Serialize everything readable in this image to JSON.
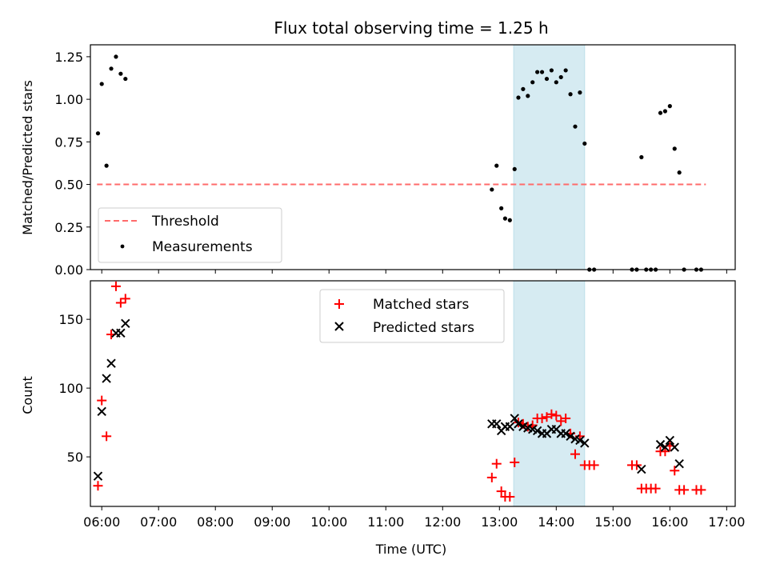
{
  "chart_data": [
    {
      "type": "scatter",
      "title": "Flux total observing time = 1.25 h",
      "xlabel": "",
      "ylabel": "Matched/Predicted stars",
      "xlim": [
        "05:48",
        "17:09"
      ],
      "ylim": [
        0,
        1.32
      ],
      "yticks": [
        "0.00",
        "0.25",
        "0.50",
        "0.75",
        "1.00",
        "1.25"
      ],
      "shaded_region": {
        "start": "13:15",
        "end": "14:30",
        "color": "#add8e6"
      },
      "threshold": {
        "name": "Threshold",
        "value": 0.5,
        "x_start": "05:55",
        "x_end": "16:38",
        "color": "#ff6b6b"
      },
      "legend_position": "lower-left",
      "series": [
        {
          "name": "Measurements",
          "color": "#000000",
          "marker": "dot",
          "points": [
            [
              "05:56",
              0.8
            ],
            [
              "06:00",
              1.09
            ],
            [
              "06:05",
              0.61
            ],
            [
              "06:10",
              1.18
            ],
            [
              "06:15",
              1.25
            ],
            [
              "06:20",
              1.15
            ],
            [
              "06:25",
              1.12
            ],
            [
              "12:52",
              0.47
            ],
            [
              "12:57",
              0.61
            ],
            [
              "13:02",
              0.36
            ],
            [
              "13:06",
              0.3
            ],
            [
              "13:11",
              0.29
            ],
            [
              "13:16",
              0.59
            ],
            [
              "13:20",
              1.01
            ],
            [
              "13:25",
              1.06
            ],
            [
              "13:30",
              1.02
            ],
            [
              "13:35",
              1.1
            ],
            [
              "13:40",
              1.16
            ],
            [
              "13:45",
              1.16
            ],
            [
              "13:50",
              1.12
            ],
            [
              "13:55",
              1.17
            ],
            [
              "14:00",
              1.1
            ],
            [
              "14:05",
              1.13
            ],
            [
              "14:10",
              1.17
            ],
            [
              "14:15",
              1.03
            ],
            [
              "14:20",
              0.84
            ],
            [
              "14:25",
              1.04
            ],
            [
              "14:30",
              0.74
            ],
            [
              "14:35",
              0.0
            ],
            [
              "14:40",
              0.0
            ],
            [
              "15:20",
              0.0
            ],
            [
              "15:25",
              0.0
            ],
            [
              "15:30",
              0.66
            ],
            [
              "15:35",
              0.0
            ],
            [
              "15:40",
              0.0
            ],
            [
              "15:45",
              0.0
            ],
            [
              "15:50",
              0.92
            ],
            [
              "15:55",
              0.93
            ],
            [
              "16:00",
              0.96
            ],
            [
              "16:05",
              0.71
            ],
            [
              "16:10",
              0.57
            ],
            [
              "16:15",
              0.0
            ],
            [
              "16:28",
              0.0
            ],
            [
              "16:33",
              0.0
            ]
          ]
        }
      ]
    },
    {
      "type": "scatter",
      "xlabel": "Time (UTC)",
      "ylabel": "Count",
      "xlim": [
        "05:48",
        "17:09"
      ],
      "ylim": [
        14,
        178
      ],
      "yticks": [
        "50",
        "100",
        "150"
      ],
      "xticks": [
        "06:00",
        "07:00",
        "08:00",
        "09:00",
        "10:00",
        "11:00",
        "12:00",
        "13:00",
        "14:00",
        "15:00",
        "16:00",
        "17:00"
      ],
      "shaded_region": {
        "start": "13:15",
        "end": "14:30",
        "color": "#add8e6"
      },
      "legend_position": "upper-center",
      "series": [
        {
          "name": "Matched stars",
          "color": "#ff0000",
          "marker": "plus",
          "points": [
            [
              "05:56",
              29
            ],
            [
              "06:00",
              91
            ],
            [
              "06:05",
              65
            ],
            [
              "06:10",
              139
            ],
            [
              "06:15",
              174
            ],
            [
              "06:20",
              162
            ],
            [
              "06:25",
              165
            ],
            [
              "12:52",
              35
            ],
            [
              "12:57",
              45
            ],
            [
              "13:02",
              25
            ],
            [
              "13:06",
              21
            ],
            [
              "13:11",
              21
            ],
            [
              "13:16",
              46
            ],
            [
              "13:20",
              75
            ],
            [
              "13:25",
              74
            ],
            [
              "13:30",
              72
            ],
            [
              "13:35",
              73
            ],
            [
              "13:40",
              78
            ],
            [
              "13:45",
              78
            ],
            [
              "13:50",
              79
            ],
            [
              "13:55",
              81
            ],
            [
              "14:00",
              80
            ],
            [
              "14:05",
              76
            ],
            [
              "14:10",
              78
            ],
            [
              "14:15",
              67
            ],
            [
              "14:20",
              52
            ],
            [
              "14:25",
              65
            ],
            [
              "14:30",
              44
            ],
            [
              "14:35",
              44
            ],
            [
              "14:40",
              44
            ],
            [
              "15:20",
              44
            ],
            [
              "15:25",
              44
            ],
            [
              "15:30",
              27
            ],
            [
              "15:35",
              27
            ],
            [
              "15:40",
              27
            ],
            [
              "15:45",
              27
            ],
            [
              "15:50",
              54
            ],
            [
              "15:55",
              54
            ],
            [
              "16:00",
              58
            ],
            [
              "16:05",
              40
            ],
            [
              "16:10",
              26
            ],
            [
              "16:15",
              26
            ],
            [
              "16:28",
              26
            ],
            [
              "16:33",
              26
            ]
          ]
        },
        {
          "name": "Predicted stars",
          "color": "#000000",
          "marker": "x",
          "points": [
            [
              "05:56",
              36
            ],
            [
              "06:00",
              83
            ],
            [
              "06:05",
              107
            ],
            [
              "06:10",
              118
            ],
            [
              "06:15",
              140
            ],
            [
              "06:20",
              140
            ],
            [
              "06:25",
              147
            ],
            [
              "12:52",
              74
            ],
            [
              "12:57",
              74
            ],
            [
              "13:02",
              69
            ],
            [
              "13:06",
              72
            ],
            [
              "13:11",
              72
            ],
            [
              "13:16",
              78
            ],
            [
              "13:20",
              74
            ],
            [
              "13:25",
              72
            ],
            [
              "13:30",
              71
            ],
            [
              "13:35",
              70
            ],
            [
              "13:40",
              69
            ],
            [
              "13:45",
              67
            ],
            [
              "13:50",
              67
            ],
            [
              "13:55",
              70
            ],
            [
              "14:00",
              70
            ],
            [
              "14:05",
              67
            ],
            [
              "14:10",
              67
            ],
            [
              "14:15",
              65
            ],
            [
              "14:20",
              63
            ],
            [
              "14:25",
              62
            ],
            [
              "14:30",
              60
            ],
            [
              "15:30",
              41
            ],
            [
              "15:50",
              59
            ],
            [
              "15:55",
              57
            ],
            [
              "16:00",
              62
            ],
            [
              "16:05",
              57
            ],
            [
              "16:10",
              45
            ]
          ]
        }
      ]
    }
  ]
}
